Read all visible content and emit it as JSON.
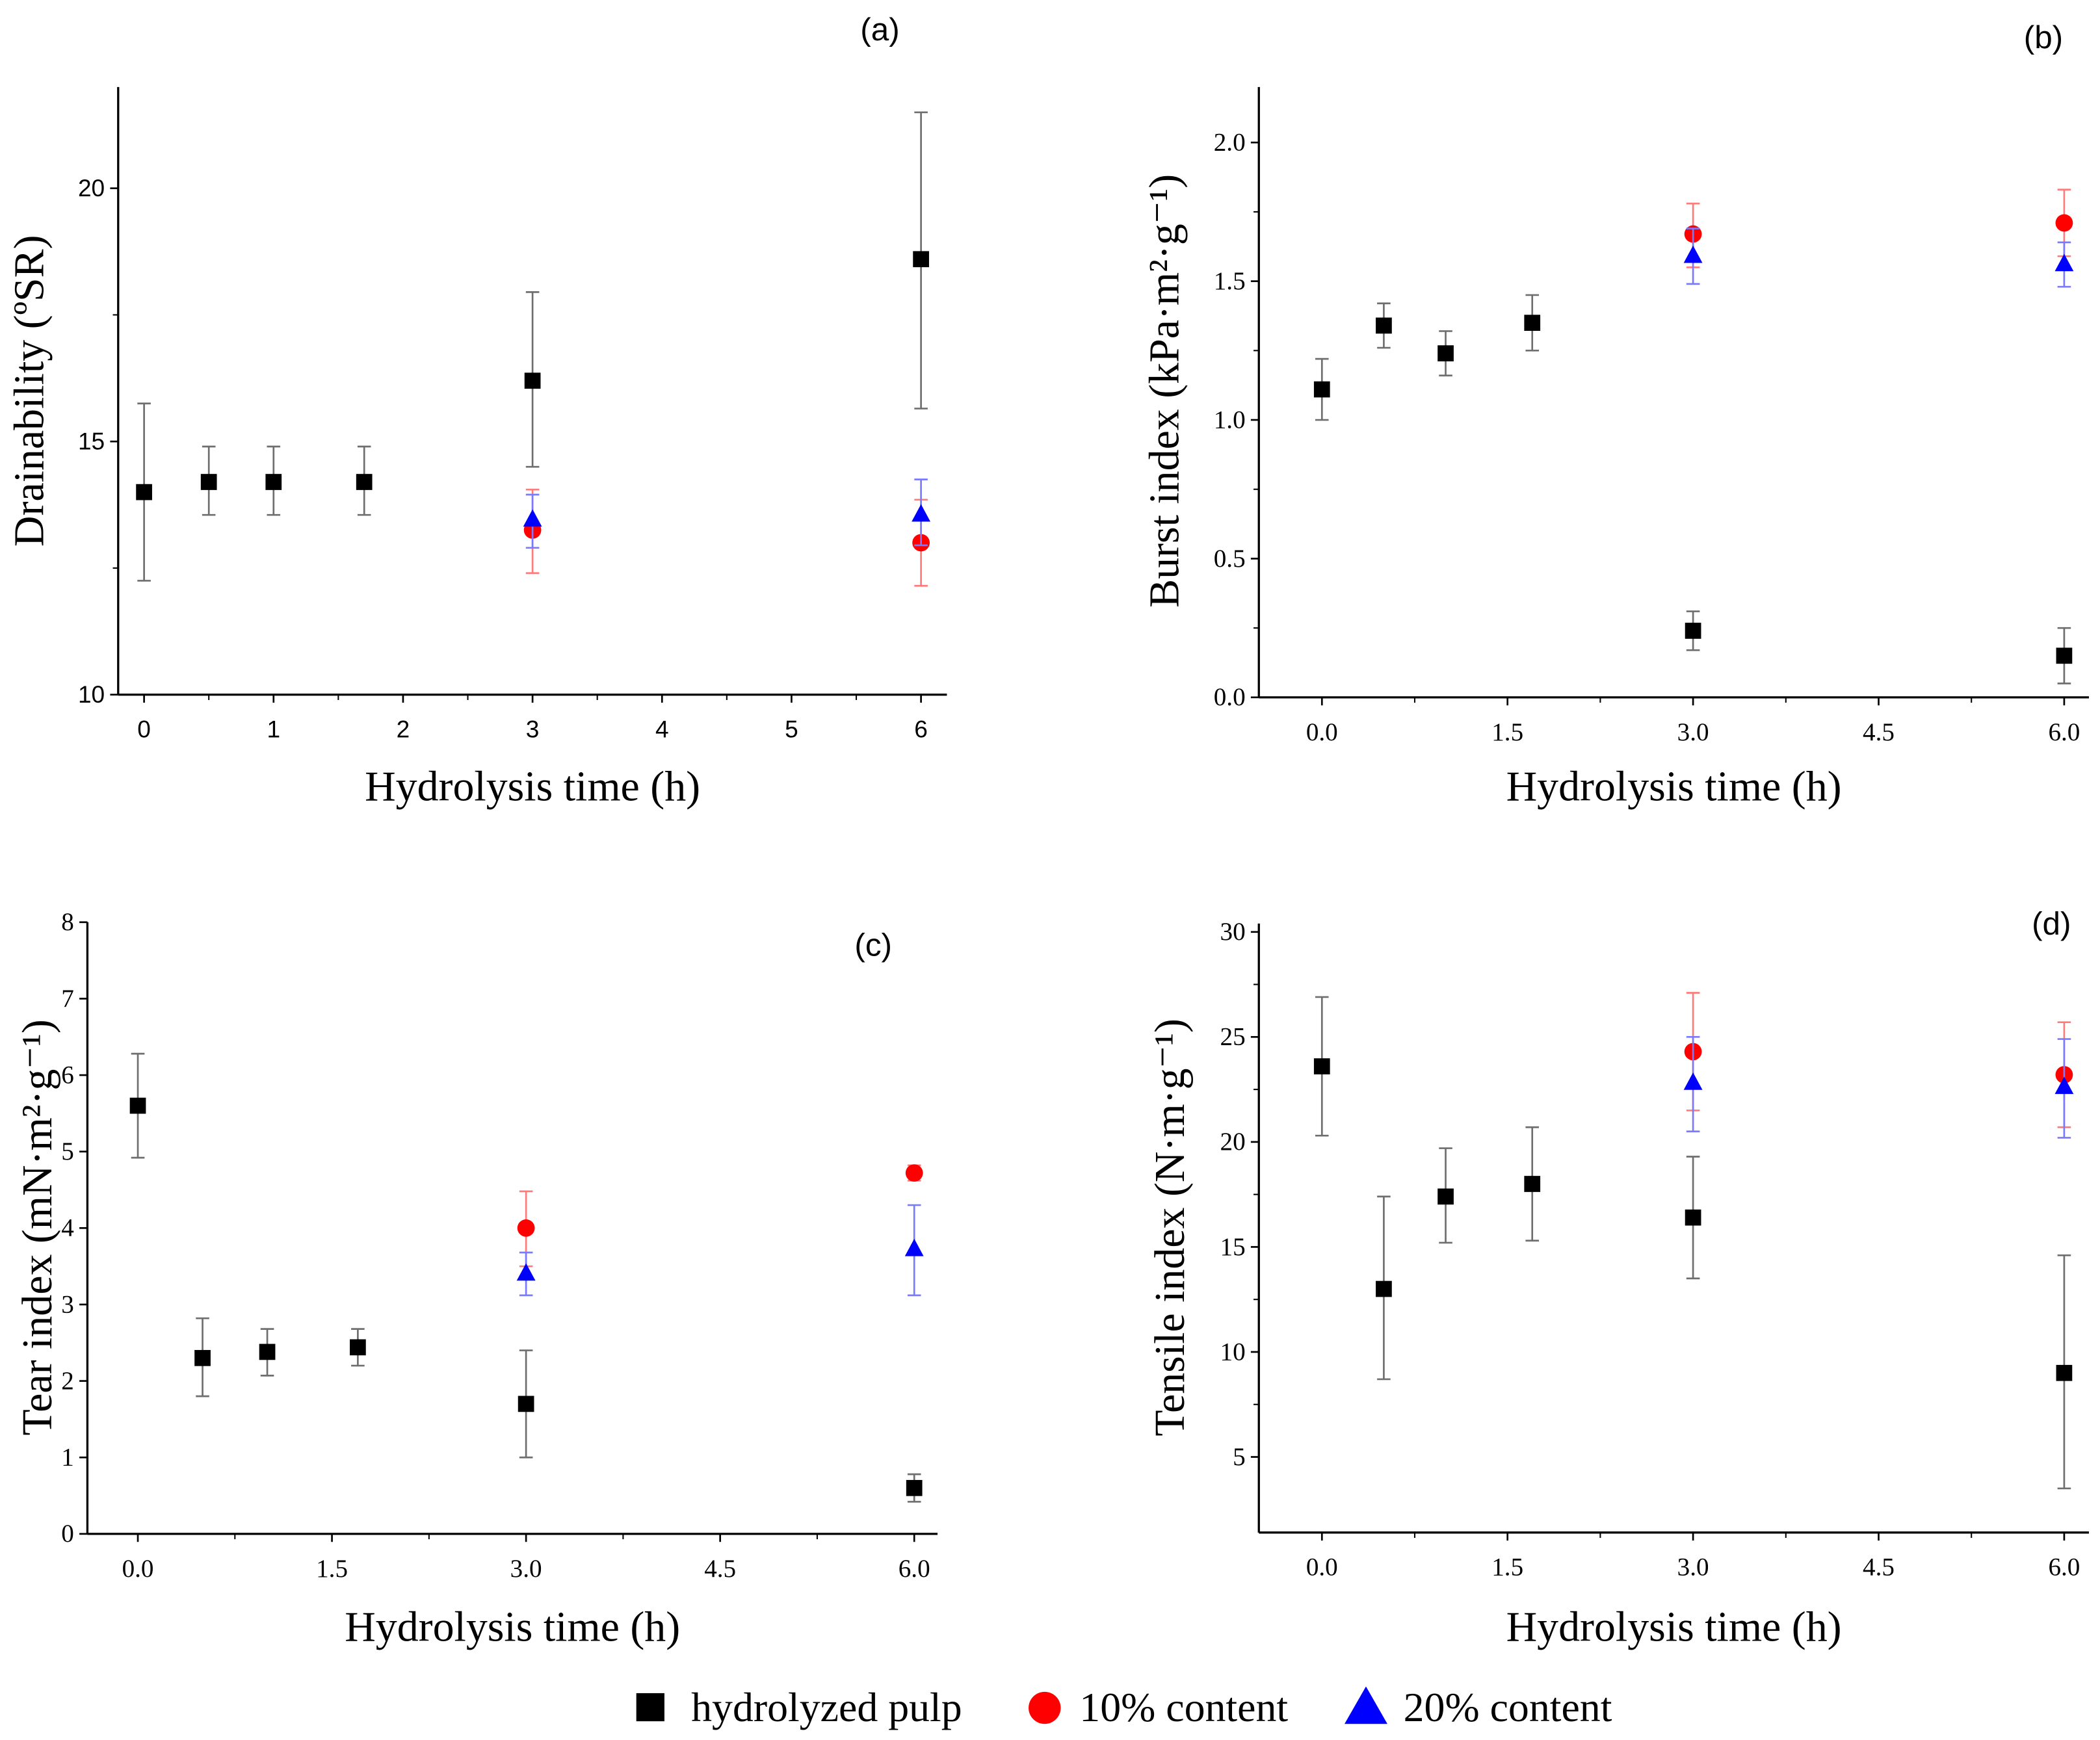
{
  "colors": {
    "hydrolyzed": "#000000",
    "c10": "#ff0000",
    "c20": "#0000ff",
    "err_hydrolyzed": "#6e6e6e",
    "err_c10": "#ff7a7a",
    "err_c20": "#7a7aff"
  },
  "legend": [
    {
      "label": "hydrolyzed pulp",
      "marker": "square",
      "color": "#000000"
    },
    {
      "label": "10% content",
      "marker": "circle",
      "color": "#ff0000"
    },
    {
      "label": "20% content",
      "marker": "triangle",
      "color": "#0000ff"
    }
  ],
  "chart_data": [
    {
      "type": "scatter",
      "panel": "(a)",
      "xlabel": "Hydrolysis time (h)",
      "ylabel": "Drainability (ºSR)",
      "xlim": [
        -0.2,
        6.2
      ],
      "ylim": [
        10,
        22
      ],
      "xticks": [
        0,
        1,
        2,
        3,
        4,
        5,
        6
      ],
      "xtick_labels": [
        "0",
        "1",
        "2",
        "3",
        "4",
        "5",
        "6"
      ],
      "xminor": 0.5,
      "yticks": [
        10,
        15,
        20
      ],
      "ytick_labels": [
        "10",
        "15",
        "20"
      ],
      "yminor": 2.5,
      "series": [
        {
          "name": "hydrolyzed pulp",
          "marker": "square",
          "x": [
            0,
            0.5,
            1,
            1.7,
            3,
            6
          ],
          "y": [
            14.0,
            14.2,
            14.2,
            14.2,
            16.2,
            18.6
          ],
          "y_low": [
            12.25,
            13.55,
            13.55,
            13.55,
            14.5,
            15.65
          ],
          "y_high": [
            15.75,
            14.9,
            14.9,
            14.9,
            17.95,
            21.5
          ]
        },
        {
          "name": "10% content",
          "marker": "circle",
          "x": [
            3,
            6
          ],
          "y": [
            13.25,
            13.0
          ],
          "y_low": [
            12.4,
            12.15
          ],
          "y_high": [
            14.05,
            13.85
          ]
        },
        {
          "name": "20% content",
          "marker": "triangle",
          "x": [
            3,
            6
          ],
          "y": [
            13.45,
            13.55
          ],
          "y_low": [
            12.9,
            12.95
          ],
          "y_high": [
            13.95,
            14.25
          ]
        }
      ]
    },
    {
      "type": "scatter",
      "panel": "(b)",
      "xlabel": "Hydrolysis time (h)",
      "ylabel": "Burst index (kPa·m²·g⁻¹)",
      "xlim": [
        -0.51,
        6.2
      ],
      "ylim": [
        0,
        2.2
      ],
      "xticks": [
        0,
        1.5,
        3,
        4.5,
        6
      ],
      "xtick_labels": [
        "0.0",
        "1.5",
        "3.0",
        "4.5",
        "6.0"
      ],
      "xminor": 0.75,
      "yticks": [
        0,
        0.5,
        1,
        1.5,
        2
      ],
      "ytick_labels": [
        "0.0",
        "0.5",
        "1.0",
        "1.5",
        "2.0"
      ],
      "yminor": 0.25,
      "series": [
        {
          "name": "hydrolyzed pulp",
          "marker": "square",
          "x": [
            0,
            0.5,
            1,
            1.7,
            3,
            6
          ],
          "y": [
            1.11,
            1.34,
            1.24,
            1.35,
            0.24,
            0.15
          ],
          "y_low": [
            1.0,
            1.26,
            1.16,
            1.25,
            0.17,
            0.05
          ],
          "y_high": [
            1.22,
            1.42,
            1.32,
            1.45,
            0.31,
            0.25
          ]
        },
        {
          "name": "10% content",
          "marker": "circle",
          "x": [
            3,
            6
          ],
          "y": [
            1.67,
            1.71
          ],
          "y_low": [
            1.55,
            1.59
          ],
          "y_high": [
            1.78,
            1.83
          ]
        },
        {
          "name": "20% content",
          "marker": "triangle",
          "x": [
            3,
            6
          ],
          "y": [
            1.59,
            1.56
          ],
          "y_low": [
            1.49,
            1.48
          ],
          "y_high": [
            1.69,
            1.64
          ]
        }
      ]
    },
    {
      "type": "scatter",
      "panel": "(c)",
      "xlabel": "Hydrolysis time (h)",
      "ylabel": "Tear index (mN·m²·g⁻¹)",
      "xlim": [
        -0.39,
        6.18
      ],
      "ylim": [
        0,
        8
      ],
      "xticks": [
        0,
        1.5,
        3,
        4.5,
        6
      ],
      "xtick_labels": [
        "0.0",
        "1.5",
        "3.0",
        "4.5",
        "6.0"
      ],
      "xminor": 0.75,
      "yticks": [
        0,
        1,
        2,
        3,
        4,
        5,
        6,
        7,
        8
      ],
      "ytick_labels": [
        "0",
        "1",
        "2",
        "3",
        "4",
        "5",
        "6",
        "7",
        "8"
      ],
      "yminor": 0,
      "series": [
        {
          "name": "hydrolyzed pulp",
          "marker": "square",
          "x": [
            0,
            0.5,
            1,
            1.7,
            3,
            6
          ],
          "y": [
            5.6,
            2.3,
            2.38,
            2.44,
            1.7,
            0.6
          ],
          "y_low": [
            4.92,
            1.8,
            2.07,
            2.2,
            1.0,
            0.42
          ],
          "y_high": [
            6.28,
            2.82,
            2.68,
            2.68,
            2.4,
            0.78
          ]
        },
        {
          "name": "10% content",
          "marker": "circle",
          "x": [
            3,
            6
          ],
          "y": [
            4.0,
            4.72
          ],
          "y_low": [
            3.5,
            4.62
          ],
          "y_high": [
            4.48,
            4.82
          ]
        },
        {
          "name": "20% content",
          "marker": "triangle",
          "x": [
            3,
            6
          ],
          "y": [
            3.4,
            3.72
          ],
          "y_low": [
            3.12,
            3.12
          ],
          "y_high": [
            3.68,
            4.3
          ]
        }
      ]
    },
    {
      "type": "scatter",
      "panel": "(d)",
      "xlabel": "Hydrolysis time (h)",
      "ylabel": "Tensile index (N·m·g⁻¹)",
      "xlim": [
        -0.51,
        6.2
      ],
      "ylim": [
        1.4,
        30.4
      ],
      "xticks": [
        0,
        1.5,
        3,
        4.5,
        6
      ],
      "xtick_labels": [
        "0.0",
        "1.5",
        "3.0",
        "4.5",
        "6.0"
      ],
      "xminor": 0.75,
      "yticks": [
        5,
        10,
        15,
        20,
        25,
        30
      ],
      "ytick_labels": [
        "5",
        "10",
        "15",
        "20",
        "25",
        "30"
      ],
      "yminor": 2.5,
      "series": [
        {
          "name": "hydrolyzed pulp",
          "marker": "square",
          "x": [
            0,
            0.5,
            1,
            1.7,
            3,
            6
          ],
          "y": [
            23.6,
            13.0,
            17.4,
            18.0,
            16.4,
            9.0
          ],
          "y_low": [
            20.3,
            8.7,
            15.2,
            15.3,
            13.5,
            3.5
          ],
          "y_high": [
            26.9,
            17.4,
            19.7,
            20.7,
            19.3,
            14.6
          ]
        },
        {
          "name": "10% content",
          "marker": "circle",
          "x": [
            3,
            6
          ],
          "y": [
            24.3,
            23.2
          ],
          "y_low": [
            21.5,
            20.7
          ],
          "y_high": [
            27.1,
            25.7
          ]
        },
        {
          "name": "20% content",
          "marker": "triangle",
          "x": [
            3,
            6
          ],
          "y": [
            22.8,
            22.6
          ],
          "y_low": [
            20.5,
            20.2
          ],
          "y_high": [
            25.0,
            24.9
          ]
        }
      ]
    }
  ]
}
